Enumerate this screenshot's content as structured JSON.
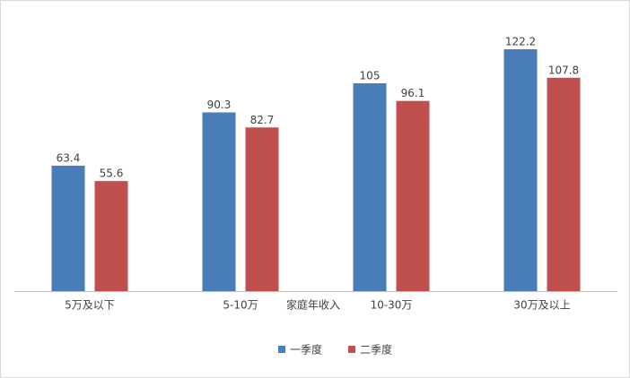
{
  "chart_data": {
    "type": "bar",
    "x_label": "家庭年收入",
    "categories": [
      "5万及以下",
      "5-10万",
      "10-30万",
      "30万及以上"
    ],
    "series": [
      {
        "name": "一季度",
        "color": "#4a7ebb",
        "values": [
          63.4,
          90.3,
          105,
          122.2
        ]
      },
      {
        "name": "二季度",
        "color": "#c0504d",
        "values": [
          55.6,
          82.7,
          96.1,
          107.8
        ]
      }
    ]
  }
}
